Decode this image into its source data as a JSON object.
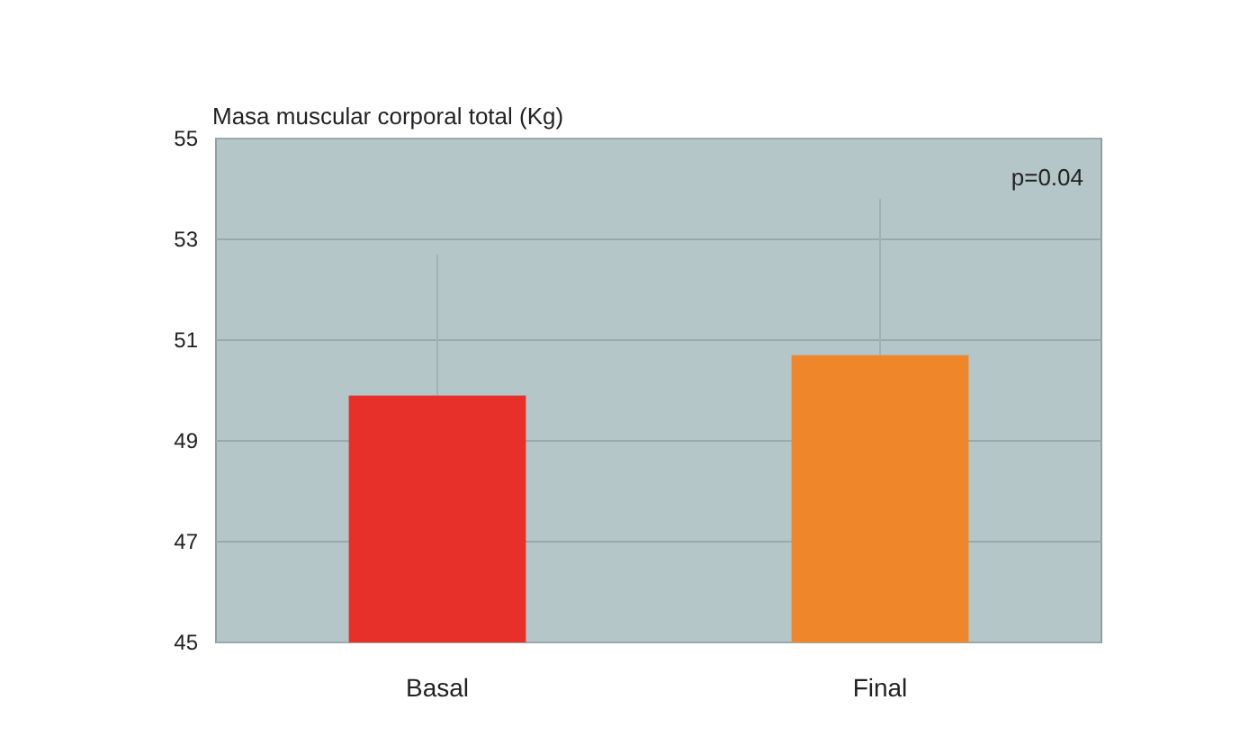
{
  "chart_data": {
    "type": "bar",
    "ylabel": "Masa muscular corporal total (Kg)",
    "categories": [
      "Basal",
      "Final"
    ],
    "values": [
      49.9,
      50.7
    ],
    "colors": [
      "#e8302a",
      "#f0862a"
    ],
    "errors": [
      [
        49.9,
        52.7
      ],
      [
        50.7,
        53.8
      ]
    ],
    "ylim": [
      45,
      55
    ],
    "yticks": [
      45,
      47,
      49,
      51,
      53,
      55
    ],
    "grid": "y",
    "annotations": [
      "p=0.04"
    ]
  }
}
